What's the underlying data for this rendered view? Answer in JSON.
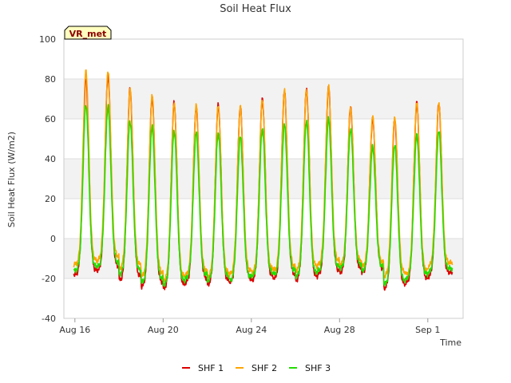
{
  "chart_data": {
    "type": "line",
    "title": "Soil Heat Flux",
    "xlabel": "Time",
    "ylabel": "Soil Heat Flux (W/m2)",
    "ylim": [
      -40,
      100
    ],
    "yticks": [
      -40,
      -20,
      0,
      20,
      40,
      60,
      80,
      100
    ],
    "xlim_days": [
      -0.5,
      17.6
    ],
    "xticks": [
      {
        "label": "Aug 16",
        "day": 0
      },
      {
        "label": "Aug 20",
        "day": 4
      },
      {
        "label": "Aug 24",
        "day": 8
      },
      {
        "label": "Aug 28",
        "day": 12
      },
      {
        "label": "Sep 1",
        "day": 16
      }
    ],
    "site_label": "VR_met",
    "grid": "horizontal bands",
    "legend_position": "bottom",
    "x_unit": "day offset from Aug 16 (daily peaks near midday)",
    "series": [
      {
        "name": "SHF 1",
        "color": "#dd0000",
        "peak_day": [
          0.5,
          1.5,
          2.5,
          3.5,
          4.5,
          5.5,
          6.5,
          7.5,
          8.5,
          9.5,
          10.5,
          11.5,
          12.5,
          13.5,
          14.5,
          15.5,
          16.5
        ],
        "peak_values": [
          80,
          82,
          75,
          71,
          68,
          66,
          67,
          66,
          70,
          74,
          75,
          76,
          66,
          60,
          60,
          68,
          68
        ],
        "min_values": [
          -17,
          -15,
          -20,
          -23,
          -24,
          -21,
          -22,
          -21,
          -20,
          -19,
          -20,
          -17,
          -16,
          -16,
          -24,
          -21,
          -18
        ]
      },
      {
        "name": "SHF 2",
        "color": "#ffa500",
        "peak_day": [
          0.5,
          1.5,
          2.5,
          3.5,
          4.5,
          5.5,
          6.5,
          7.5,
          8.5,
          9.5,
          10.5,
          11.5,
          12.5,
          13.5,
          14.5,
          15.5,
          16.5
        ],
        "peak_values": [
          84,
          84,
          75,
          72,
          68,
          67,
          67,
          66,
          70,
          74,
          75,
          76,
          66,
          61,
          61,
          68,
          68
        ],
        "min_values": [
          -12,
          -10,
          -14,
          -18,
          -20,
          -17,
          -18,
          -17,
          -16,
          -15,
          -15,
          -12,
          -12,
          -13,
          -18,
          -17,
          -13
        ]
      },
      {
        "name": "SHF 3",
        "color": "#22dd00",
        "peak_day": [
          0.5,
          1.5,
          2.5,
          3.5,
          4.5,
          5.5,
          6.5,
          7.5,
          8.5,
          9.5,
          10.5,
          11.5,
          12.5,
          13.5,
          14.5,
          15.5,
          16.5
        ],
        "peak_values": [
          67,
          66,
          59,
          56,
          54,
          53,
          53,
          51,
          55,
          57,
          59,
          60,
          55,
          46,
          47,
          52,
          54
        ],
        "min_values": [
          -15,
          -13,
          -17,
          -21,
          -22,
          -19,
          -20,
          -20,
          -18,
          -17,
          -18,
          -15,
          -14,
          -15,
          -22,
          -19,
          -16
        ]
      }
    ]
  }
}
